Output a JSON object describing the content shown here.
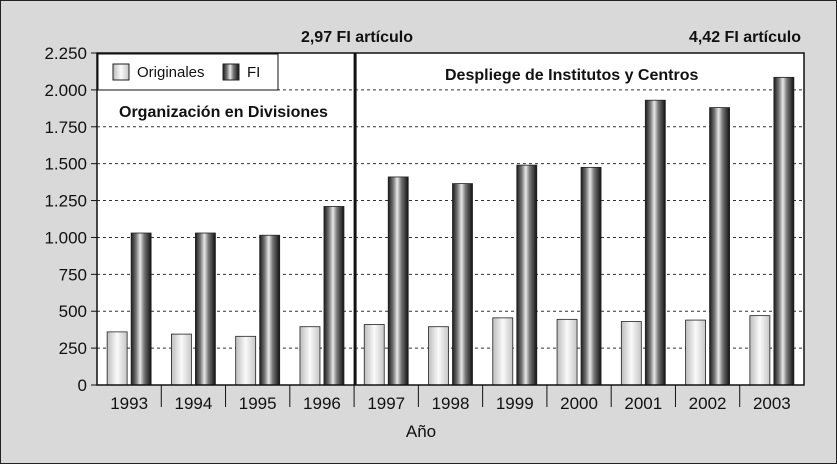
{
  "chart_data": {
    "type": "bar",
    "categories": [
      "1993",
      "1994",
      "1995",
      "1996",
      "1997",
      "1998",
      "1999",
      "2000",
      "2001",
      "2002",
      "2003"
    ],
    "series": [
      {
        "name": "Originales",
        "values": [
          360,
          345,
          330,
          395,
          410,
          395,
          455,
          445,
          430,
          440,
          470
        ]
      },
      {
        "name": "FI",
        "values": [
          1030,
          1030,
          1015,
          1210,
          1410,
          1365,
          1490,
          1475,
          1930,
          1880,
          2085
        ]
      }
    ],
    "xlabel": "Año",
    "ylabel": "",
    "ylim": [
      0,
      2250
    ],
    "yticks": [
      0,
      250,
      500,
      750,
      1000,
      1250,
      1500,
      1750,
      2000,
      2250
    ],
    "ytick_labels": [
      "0",
      "250",
      "500",
      "750",
      "1.000",
      "1.250",
      "1.500",
      "1.750",
      "2.000",
      "2.250"
    ],
    "grid": "horizontal dashed",
    "legend_position": "top-left",
    "divider_after_category": "1996",
    "annotations": {
      "left_top": "2,97 FI artículo",
      "right_top": "4,42 FI artículo",
      "left_region": "Organización en Divisiones",
      "right_region": "Despliege de Institutos y Centros"
    },
    "colors": {
      "originales": "#e6e6e6",
      "fi": "#555555",
      "plot_bg": "#ffffff",
      "frame_bg": "#d9d9d9"
    }
  }
}
